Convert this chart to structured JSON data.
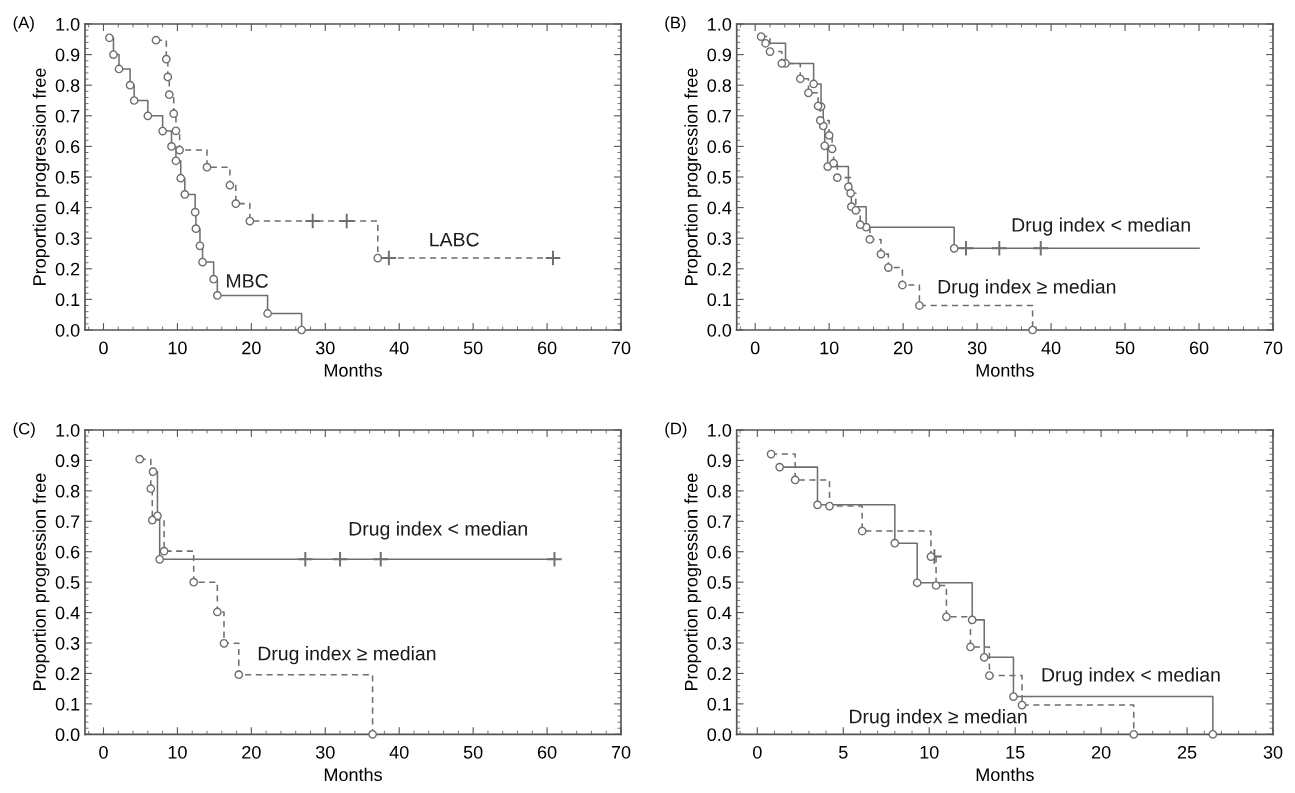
{
  "chart_data": [
    {
      "type": "step",
      "title": "(A)",
      "xlabel": "Months",
      "ylabel": "Proportion progression free",
      "xlim": [
        -2.5,
        70
      ],
      "xticks": [
        0,
        10,
        20,
        30,
        40,
        50,
        60,
        70
      ],
      "ylim": [
        0,
        1
      ],
      "yticks": [
        {
          "value": 0,
          "label": "0.0"
        },
        {
          "value": 0.1,
          "label": "0.1"
        },
        {
          "value": 0.2,
          "label": "0.2"
        },
        {
          "value": 0.3,
          "label": "0.3"
        },
        {
          "value": 0.4,
          "label": "0.4"
        },
        {
          "value": 0.5,
          "label": "0.5"
        },
        {
          "value": 0.6,
          "label": "0.6"
        },
        {
          "value": 0.7,
          "label": "0.7"
        },
        {
          "value": 0.8,
          "label": "0.8"
        },
        {
          "value": 0.9,
          "label": "0.9"
        },
        {
          "value": 1,
          "label": "1.0"
        }
      ],
      "series": [
        {
          "name": "MBC",
          "line_style": "solid",
          "color": "#6e6e6e",
          "x": [
            0.8,
            1.35,
            2.1,
            3.6,
            4.15,
            6.0,
            8.0,
            9.2,
            9.8,
            10.45,
            11.0,
            12.4,
            12.5,
            13.05,
            13.4,
            14.9,
            15.4,
            22.2,
            26.8
          ],
          "values": [
            0.955,
            0.9,
            0.853,
            0.8,
            0.75,
            0.7,
            0.65,
            0.6,
            0.553,
            0.496,
            0.443,
            0.385,
            0.331,
            0.275,
            0.222,
            0.166,
            0.113,
            0.054,
            0.0
          ]
        },
        {
          "type": "scatter",
          "marker": "circle",
          "color": "#6e6e6e",
          "x": [
            0.8,
            1.35,
            2.1,
            3.6,
            4.15,
            6.0,
            8.0,
            9.2,
            9.8,
            10.45,
            11.0,
            12.4,
            12.5,
            13.05,
            13.4,
            14.9,
            15.4,
            22.2,
            26.8
          ],
          "values": [
            0.955,
            0.9,
            0.853,
            0.8,
            0.75,
            0.7,
            0.65,
            0.6,
            0.553,
            0.496,
            0.443,
            0.385,
            0.331,
            0.275,
            0.222,
            0.166,
            0.113,
            0.054,
            0.0
          ]
        },
        {
          "name": "LABC",
          "line_style": "dashed",
          "color": "#6e6e6e",
          "x": [
            7.1,
            8.5,
            8.7,
            8.9,
            9.5,
            9.8,
            10.3,
            14.0,
            17.1,
            17.9,
            19.8,
            28.3,
            32.9,
            37.1,
            38.6,
            60.8
          ],
          "values": [
            0.947,
            0.885,
            0.827,
            0.769,
            0.707,
            0.651,
            0.588,
            0.532,
            0.473,
            0.413,
            0.356,
            0.356,
            0.356,
            0.235,
            0.235,
            0.235
          ]
        },
        {
          "type": "scatter",
          "marker": "circle",
          "color": "#6e6e6e",
          "x": [
            7.1,
            8.5,
            8.7,
            8.9,
            9.5,
            9.8,
            10.3,
            14.0,
            17.1,
            17.9,
            19.8,
            37.1
          ],
          "values": [
            0.947,
            0.885,
            0.827,
            0.769,
            0.707,
            0.651,
            0.588,
            0.532,
            0.473,
            0.413,
            0.356,
            0.235
          ]
        },
        {
          "type": "scatter",
          "marker": "cross",
          "color": "#6e6e6e",
          "x": [
            28.3,
            32.9,
            38.6,
            60.8
          ],
          "values": [
            0.356,
            0.356,
            0.235,
            0.235
          ]
        }
      ]
    },
    {
      "type": "step",
      "title": "(B)",
      "xlabel": "Months",
      "ylabel": "Proportion progression free",
      "xlim": [
        -2.5,
        70
      ],
      "xticks": [
        0,
        10,
        20,
        30,
        40,
        50,
        60,
        70
      ],
      "ylim": [
        0,
        1
      ],
      "yticks": [
        {
          "value": 0,
          "label": "0.0"
        },
        {
          "value": 0.1,
          "label": "0.1"
        },
        {
          "value": 0.2,
          "label": "0.2"
        },
        {
          "value": 0.3,
          "label": "0.3"
        },
        {
          "value": 0.4,
          "label": "0.4"
        },
        {
          "value": 0.5,
          "label": "0.5"
        },
        {
          "value": 0.6,
          "label": "0.6"
        },
        {
          "value": 0.7,
          "label": "0.7"
        },
        {
          "value": 0.8,
          "label": "0.8"
        },
        {
          "value": 0.9,
          "label": "0.9"
        },
        {
          "value": 1,
          "label": "1.0"
        }
      ],
      "series": [
        {
          "name": "Drug index < median",
          "line_style": "solid",
          "color": "#6e6e6e",
          "x": [
            1.4,
            4.1,
            7.9,
            8.9,
            9.2,
            9.4,
            9.8,
            12.6,
            13.0,
            15.0,
            26.9,
            28.5,
            33.0,
            38.6,
            60
          ],
          "values": [
            0.937,
            0.871,
            0.804,
            0.73,
            0.667,
            0.602,
            0.534,
            0.468,
            0.403,
            0.336,
            0.267,
            0.267,
            0.267,
            0.267,
            0.267
          ]
        },
        {
          "type": "scatter",
          "marker": "circle",
          "color": "#6e6e6e",
          "x": [
            1.4,
            4.1,
            7.9,
            8.9,
            9.2,
            9.4,
            9.8,
            12.6,
            13.0,
            15.0,
            26.9
          ],
          "values": [
            0.937,
            0.871,
            0.804,
            0.73,
            0.667,
            0.602,
            0.534,
            0.468,
            0.403,
            0.336,
            0.267
          ]
        },
        {
          "type": "scatter",
          "marker": "cross",
          "color": "#6e6e6e",
          "x": [
            28.5,
            33.0,
            38.6
          ],
          "values": [
            0.267,
            0.267,
            0.267
          ]
        },
        {
          "name": "Drug index ≥ median",
          "line_style": "dashed",
          "color": "#6e6e6e",
          "x": [
            0.8,
            2.0,
            3.6,
            6.1,
            7.2,
            8.5,
            8.8,
            10.0,
            10.4,
            10.6,
            11.1,
            12.9,
            13.6,
            14.2,
            15.5,
            17.0,
            18.0,
            19.9,
            22.2,
            37.5
          ],
          "values": [
            0.959,
            0.91,
            0.871,
            0.821,
            0.775,
            0.732,
            0.685,
            0.636,
            0.592,
            0.545,
            0.498,
            0.447,
            0.391,
            0.344,
            0.296,
            0.248,
            0.204,
            0.147,
            0.08,
            0.0
          ]
        },
        {
          "type": "scatter",
          "marker": "circle",
          "color": "#6e6e6e",
          "x": [
            0.8,
            2.0,
            3.6,
            6.1,
            7.2,
            8.5,
            8.8,
            10.0,
            10.4,
            10.6,
            11.1,
            12.9,
            13.6,
            14.2,
            15.5,
            17.0,
            18.0,
            19.9,
            22.2,
            37.5
          ],
          "values": [
            0.959,
            0.91,
            0.871,
            0.821,
            0.775,
            0.732,
            0.685,
            0.636,
            0.592,
            0.545,
            0.498,
            0.447,
            0.391,
            0.344,
            0.296,
            0.248,
            0.204,
            0.147,
            0.08,
            0.0
          ]
        }
      ]
    },
    {
      "type": "step",
      "title": "(C)",
      "xlabel": "Months",
      "ylabel": "Proportion progression free",
      "xlim": [
        -2.5,
        70
      ],
      "xticks": [
        0,
        10,
        20,
        30,
        40,
        50,
        60,
        70
      ],
      "ylim": [
        0,
        1
      ],
      "yticks": [
        {
          "value": 0,
          "label": "0.0"
        },
        {
          "value": 0.1,
          "label": "0.1"
        },
        {
          "value": 0.2,
          "label": "0.2"
        },
        {
          "value": 0.3,
          "label": "0.3"
        },
        {
          "value": 0.4,
          "label": "0.4"
        },
        {
          "value": 0.5,
          "label": "0.5"
        },
        {
          "value": 0.6,
          "label": "0.6"
        },
        {
          "value": 0.7,
          "label": "0.7"
        },
        {
          "value": 0.8,
          "label": "0.8"
        },
        {
          "value": 0.9,
          "label": "0.9"
        },
        {
          "value": 1,
          "label": "1.0"
        }
      ],
      "series": [
        {
          "name": "Drug index < median",
          "line_style": "solid",
          "color": "#6e6e6e",
          "x": [
            6.7,
            7.3,
            7.6,
            27.3,
            32.0,
            37.5,
            61.0
          ],
          "values": [
            0.863,
            0.718,
            0.575,
            0.575,
            0.575,
            0.575,
            0.575
          ]
        },
        {
          "type": "scatter",
          "marker": "circle",
          "color": "#6e6e6e",
          "x": [
            6.7,
            7.3,
            7.6
          ],
          "values": [
            0.863,
            0.718,
            0.575
          ]
        },
        {
          "type": "scatter",
          "marker": "cross",
          "color": "#6e6e6e",
          "x": [
            27.3,
            32.0,
            37.5,
            61.0
          ],
          "values": [
            0.575,
            0.575,
            0.575,
            0.575
          ]
        },
        {
          "name": "Drug index ≥ median",
          "line_style": "dashed",
          "color": "#6e6e6e",
          "x": [
            4.9,
            6.4,
            6.6,
            8.2,
            12.2,
            15.4,
            16.3,
            18.3,
            36.4
          ],
          "values": [
            0.904,
            0.807,
            0.704,
            0.602,
            0.5,
            0.402,
            0.299,
            0.196,
            0.0
          ]
        },
        {
          "type": "scatter",
          "marker": "circle",
          "color": "#6e6e6e",
          "x": [
            4.9,
            6.4,
            6.6,
            8.2,
            12.2,
            15.4,
            16.3,
            18.3,
            36.4
          ],
          "values": [
            0.904,
            0.807,
            0.704,
            0.602,
            0.5,
            0.402,
            0.299,
            0.196,
            0.0
          ]
        }
      ]
    },
    {
      "type": "step",
      "title": "(D)",
      "xlabel": "Months",
      "ylabel": "Proportion progression free",
      "xlim": [
        -1.2,
        30
      ],
      "xticks": [
        0,
        5,
        10,
        15,
        20,
        25,
        30
      ],
      "ylim": [
        0,
        1
      ],
      "yticks": [
        {
          "value": 0,
          "label": "0.0"
        },
        {
          "value": 0.1,
          "label": "0.1"
        },
        {
          "value": 0.2,
          "label": "0.2"
        },
        {
          "value": 0.3,
          "label": "0.3"
        },
        {
          "value": 0.4,
          "label": "0.4"
        },
        {
          "value": 0.5,
          "label": "0.5"
        },
        {
          "value": 0.6,
          "label": "0.6"
        },
        {
          "value": 0.7,
          "label": "0.7"
        },
        {
          "value": 0.8,
          "label": "0.8"
        },
        {
          "value": 0.9,
          "label": "0.9"
        },
        {
          "value": 1,
          "label": "1.0"
        }
      ],
      "series": [
        {
          "name": "Drug index < median",
          "line_style": "solid",
          "color": "#6e6e6e",
          "x": [
            1.3,
            3.5,
            8.0,
            9.3,
            12.5,
            13.2,
            14.9,
            26.5
          ],
          "values": [
            0.878,
            0.754,
            0.628,
            0.498,
            0.376,
            0.253,
            0.124,
            0.0
          ]
        },
        {
          "type": "scatter",
          "marker": "circle",
          "color": "#6e6e6e",
          "x": [
            1.3,
            3.5,
            8.0,
            9.3,
            12.5,
            13.2,
            14.9,
            26.5
          ],
          "values": [
            0.878,
            0.754,
            0.628,
            0.498,
            0.376,
            0.253,
            0.124,
            0.0
          ]
        },
        {
          "name": "Drug index ≥ median",
          "line_style": "dashed",
          "color": "#6e6e6e",
          "x": [
            0.8,
            2.2,
            4.2,
            6.1,
            10.1,
            10.3,
            10.4,
            11.0,
            12.4,
            13.5,
            15.4,
            21.9
          ],
          "values": [
            0.921,
            0.836,
            0.75,
            0.668,
            0.584,
            0.584,
            0.489,
            0.386,
            0.287,
            0.193,
            0.096,
            0.0
          ]
        },
        {
          "type": "scatter",
          "marker": "circle",
          "color": "#6e6e6e",
          "x": [
            0.8,
            2.2,
            4.2,
            6.1,
            10.1,
            10.4,
            11.0,
            12.4,
            13.5,
            15.4,
            21.9
          ],
          "values": [
            0.921,
            0.836,
            0.75,
            0.668,
            0.584,
            0.489,
            0.386,
            0.287,
            0.193,
            0.096,
            0.0
          ]
        },
        {
          "type": "scatter",
          "marker": "cross",
          "color": "#6e6e6e",
          "x": [
            10.3
          ],
          "values": [
            0.584
          ]
        }
      ]
    }
  ]
}
